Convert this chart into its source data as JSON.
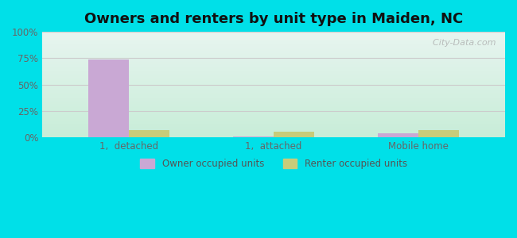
{
  "title": "Owners and renters by unit type in Maiden, NC",
  "categories": [
    "1,  detached",
    "1,  attached",
    "Mobile home"
  ],
  "owner_values": [
    74.0,
    0.8,
    3.5
  ],
  "renter_values": [
    7.0,
    5.5,
    6.5
  ],
  "owner_color": "#c9a8d4",
  "renter_color": "#c8cc7a",
  "ylim": [
    0,
    100
  ],
  "yticks": [
    0,
    25,
    50,
    75,
    100
  ],
  "ytick_labels": [
    "0%",
    "25%",
    "50%",
    "75%",
    "100%"
  ],
  "bg_top_left": "#c8edd8",
  "bg_top_right": "#e8f5f0",
  "bg_bottom_left": "#c0f0cc",
  "bg_bottom_right": "#d8f5e0",
  "outer_bg": "#00e0e8",
  "title_fontsize": 13,
  "bar_width": 0.28,
  "watermark": "  City-Data.com",
  "legend_label_owner": "Owner occupied units",
  "legend_label_renter": "Renter occupied units"
}
